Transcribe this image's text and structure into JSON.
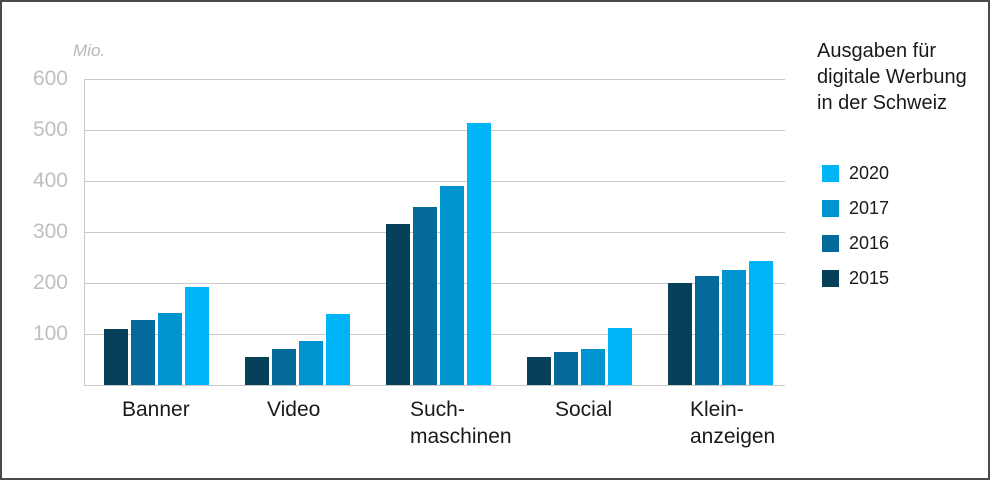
{
  "frame": {
    "background": "#ffffff",
    "border_color": "#4a4a4a"
  },
  "chart_data": {
    "type": "bar",
    "title": "Ausgaben für digitale Werbung in der Schweiz",
    "unit_label": "Mio.",
    "categories": [
      "Banner",
      "Video",
      "Such-\nmaschinen",
      "Social",
      "Klein-\nanzeigen"
    ],
    "series": [
      {
        "name": "2015",
        "color": "#064059",
        "values": [
          110,
          55,
          315,
          55,
          200
        ]
      },
      {
        "name": "2016",
        "color": "#046a99",
        "values": [
          128,
          70,
          349,
          65,
          214
        ]
      },
      {
        "name": "2017",
        "color": "#0095d0",
        "values": [
          141,
          87,
          390,
          71,
          226
        ]
      },
      {
        "name": "2020",
        "color": "#00b4f8",
        "values": [
          192,
          140,
          514,
          112,
          243
        ]
      }
    ],
    "legend_order": [
      "2020",
      "2017",
      "2016",
      "2015"
    ],
    "legend_position": "right",
    "y_axis": {
      "ticks": [
        600,
        500,
        400,
        300,
        200,
        100
      ],
      "ylim": [
        0,
        600
      ],
      "grid": true,
      "grid_color": "#c9c9c9",
      "tick_color": "#bfbfbf"
    },
    "text_color": "#1a1a1a"
  },
  "legend": {
    "title_lines": [
      "Ausgaben für",
      "digitale Werbung",
      "in der Schweiz"
    ]
  }
}
